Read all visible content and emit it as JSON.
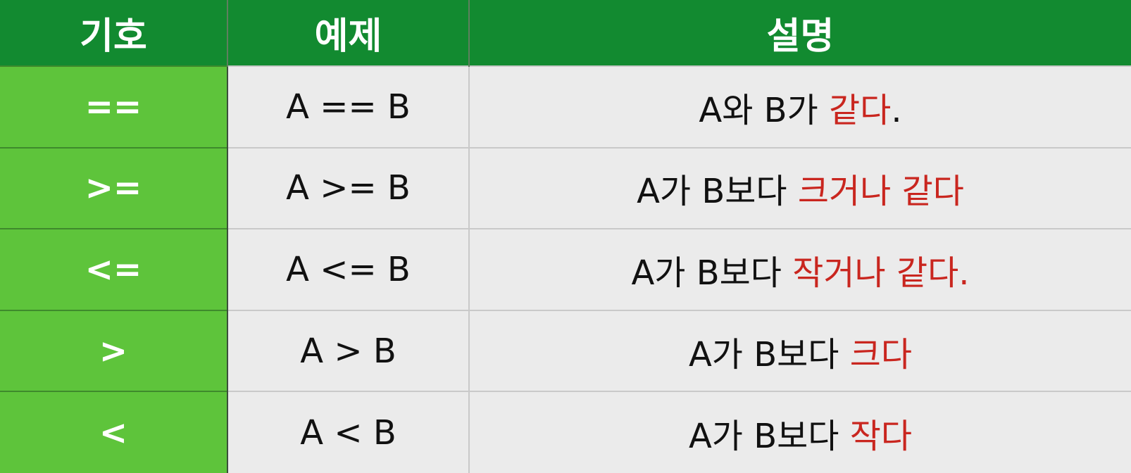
{
  "header": {
    "col_symbol": "기호",
    "col_example": "예제",
    "col_description": "설명"
  },
  "rows": [
    {
      "symbol": "==",
      "example": "A == B",
      "desc_prefix": "A와 B가 ",
      "desc_highlight": "같다",
      "desc_suffix": "."
    },
    {
      "symbol": ">=",
      "example": "A >= B",
      "desc_prefix": "A가 B보다 ",
      "desc_highlight": "크거나 같다",
      "desc_suffix": ""
    },
    {
      "symbol": "<=",
      "example": "A <= B",
      "desc_prefix": "A가 B보다 ",
      "desc_highlight": "작거나 같다.",
      "desc_suffix": ""
    },
    {
      "symbol": ">",
      "example": "A > B",
      "desc_prefix": "A가 B보다 ",
      "desc_highlight": "크다",
      "desc_suffix": ""
    },
    {
      "symbol": "<",
      "example": "A < B",
      "desc_prefix": "A가 B보다 ",
      "desc_highlight": "작다",
      "desc_suffix": ""
    }
  ],
  "colors": {
    "header_bg": "#128a30",
    "symbol_bg": "#5ec43b",
    "cell_bg": "#ebebeb",
    "highlight": "#c9261f"
  }
}
